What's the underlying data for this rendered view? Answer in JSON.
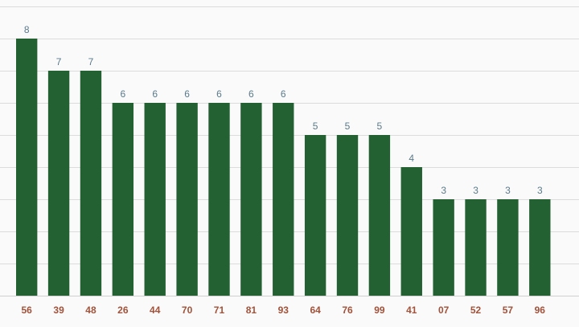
{
  "chart_data": {
    "type": "bar",
    "categories": [
      "56",
      "39",
      "48",
      "26",
      "44",
      "70",
      "71",
      "81",
      "93",
      "64",
      "76",
      "99",
      "41",
      "07",
      "52",
      "57",
      "96"
    ],
    "values": [
      8,
      7,
      7,
      6,
      6,
      6,
      6,
      6,
      6,
      5,
      5,
      5,
      4,
      3,
      3,
      3,
      3
    ],
    "title": "",
    "xlabel": "",
    "ylabel": "",
    "ylim": [
      0,
      9
    ],
    "grid": true,
    "colors": {
      "bar": "#236133",
      "value_label": "#5a7a8a",
      "category_label": "#a0523a",
      "grid": "#dcdcdc"
    }
  }
}
